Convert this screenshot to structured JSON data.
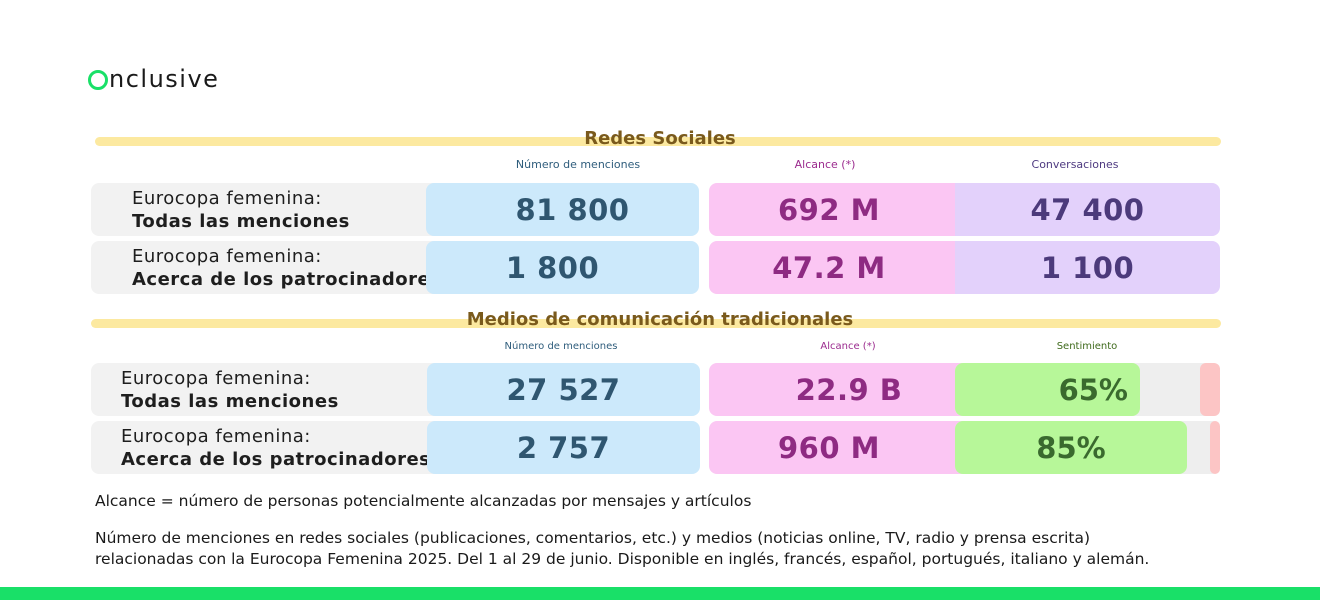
{
  "brand": {
    "logo_text": "nclusive",
    "logo_alt": "Onclusive"
  },
  "social": {
    "title": "Redes Sociales",
    "headers": [
      "Número de menciones",
      "Alcance (*)",
      "Conversaciones"
    ],
    "rows": [
      {
        "label_1": "Eurocopa femenina:",
        "label_2": "Todas las menciones",
        "mentions": "81 800",
        "reach": "692 M",
        "conversations": "47 400"
      },
      {
        "label_1": "Eurocopa femenina:",
        "label_2": "Acerca de los patrocinadores",
        "mentions": "1 800",
        "reach": "47.2 M",
        "conversations": "1 100"
      }
    ]
  },
  "media": {
    "title": "Medios de comunicación tradicionales",
    "headers": [
      "Número de menciones",
      "Alcance (*)",
      "Sentimiento"
    ],
    "rows": [
      {
        "label_1": "Eurocopa femenina:",
        "label_2": "Todas las menciones",
        "mentions": "27 527",
        "reach": "22.9 B",
        "sentiment": "65%",
        "sentiment_positive_pct": 65
      },
      {
        "label_1": "Eurocopa femenina:",
        "label_2": "Acerca de los patrocinadores",
        "mentions": "2 757",
        "reach": "960 M",
        "sentiment": "85%",
        "sentiment_positive_pct": 85
      }
    ]
  },
  "notes": {
    "reach_definition": "Alcance = número de personas potencialmente alcanzadas por mensajes y artículos",
    "methodology_line1": "Número de menciones en redes sociales (publicaciones, comentarios, etc.) y medios (noticias online, TV, radio y prensa escrita)",
    "methodology_line2": "relacionadas con la Eurocopa Femenina 2025. Del 1 al 29 de junio. Disponible en inglés, francés, español, portugués, italiano y alemán."
  },
  "colors": {
    "brand_green": "#19e068",
    "mentions_bg": "#cce9fb",
    "reach_bg": "#fbc6f3",
    "conversations_bg": "#e3d1fb",
    "sentiment_positive": "#b7f799",
    "sentiment_negative": "#fcc5c5",
    "section_bar": "#fce9a0"
  }
}
